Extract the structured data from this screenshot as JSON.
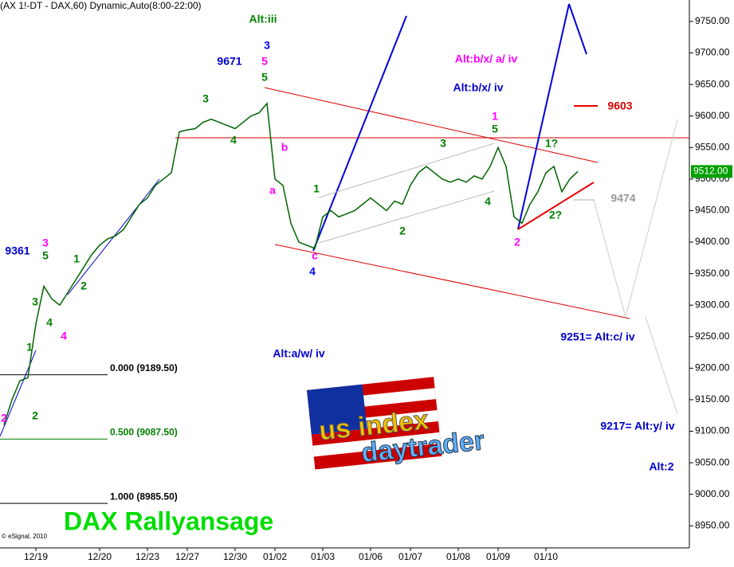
{
  "chart_data": {
    "type": "line",
    "header": "(AX 1!-DT - DAX,60) Dynamic,Auto(8:00-22:00)",
    "title": "DAX Rallyansage",
    "copyright": "© eSignal, 2010",
    "logo": [
      "us index",
      "daytrader"
    ],
    "categories": [
      null,
      null,
      null,
      null,
      "12/19",
      null,
      null,
      null,
      null,
      null,
      null,
      null,
      "12/20",
      null,
      null,
      null,
      null,
      null,
      "12/23",
      null,
      null,
      null,
      null,
      "12/27",
      null,
      null,
      null,
      null,
      null,
      "12/30",
      null,
      null,
      null,
      null,
      "01/02",
      null,
      null,
      null,
      null,
      null,
      "01/03",
      null,
      null,
      null,
      null,
      null,
      "01/06",
      null,
      null,
      null,
      null,
      "01/07",
      null,
      null,
      null,
      null,
      null,
      "01/08",
      null,
      null,
      null,
      null,
      "01/09",
      null,
      null,
      null,
      null,
      null,
      "01/10",
      null,
      null,
      null,
      null
    ],
    "series": [
      {
        "name": "DAX",
        "color": "#006400",
        "values": [
          9110,
          9150,
          9180,
          9185,
          9270,
          9330,
          9310,
          9300,
          9320,
          9340,
          9360,
          9380,
          9395,
          9405,
          9410,
          9420,
          9440,
          9460,
          9470,
          9490,
          9500,
          9510,
          9575,
          9578,
          9580,
          9590,
          9595,
          9590,
          9585,
          9580,
          9590,
          9600,
          9605,
          9620,
          9500,
          9490,
          9430,
          9400,
          9395,
          9390,
          9440,
          9450,
          9440,
          9445,
          9450,
          9460,
          9470,
          9460,
          9450,
          9465,
          9460,
          9490,
          9510,
          9520,
          9510,
          9500,
          9495,
          9500,
          9495,
          9505,
          9500,
          9520,
          9550,
          9520,
          9440,
          9430,
          9460,
          9480,
          9510,
          9520,
          9480,
          9500,
          9512
        ]
      }
    ],
    "ylim": [
      8915,
      9784
    ],
    "yticks": [
      {
        "value": 8950,
        "label": "8950.00"
      },
      {
        "value": 9000,
        "label": "9000.00"
      },
      {
        "value": 9050,
        "label": "9050.00"
      },
      {
        "value": 9100,
        "label": "9100.00"
      },
      {
        "value": 9150,
        "label": "9150.00"
      },
      {
        "value": 9200,
        "label": "9200.00"
      },
      {
        "value": 9250,
        "label": "9250.00"
      },
      {
        "value": 9300,
        "label": "9300.00"
      },
      {
        "value": 9350,
        "label": "9350.00"
      },
      {
        "value": 9400,
        "label": "9400.00"
      },
      {
        "value": 9450,
        "label": "9450.00"
      },
      {
        "value": 9500,
        "label": "9500.00"
      },
      {
        "value": 9550,
        "label": "9550.00"
      },
      {
        "value": 9600,
        "label": "9600.00"
      },
      {
        "value": 9650,
        "label": "9650.00"
      },
      {
        "value": 9700,
        "label": "9700.00"
      },
      {
        "value": 9750,
        "label": "9750.00"
      }
    ],
    "last_price": {
      "value": 9512,
      "label": "9512.00",
      "color": "#00a000"
    },
    "fib_levels": [
      {
        "value": 9189.5,
        "label": "0.000 (9189.50)",
        "color": "#000000"
      },
      {
        "value": 9087.5,
        "label": "0.500 (9087.50)",
        "color": "#008000"
      },
      {
        "value": 8985.5,
        "label": "1.000 (8985.50)",
        "color": "#000000"
      }
    ],
    "annotations": [
      {
        "text": "Alt:iii",
        "color": "#008000"
      },
      {
        "text": "3",
        "color": "#0000ff"
      },
      {
        "text": "5",
        "color": "#ff00ff"
      },
      {
        "text": "5",
        "color": "#008000"
      },
      {
        "text": "9671",
        "color": "#0000cc"
      },
      {
        "text": "3",
        "color": "#008000"
      },
      {
        "text": "4",
        "color": "#008000"
      },
      {
        "text": "b",
        "color": "#ff00ff"
      },
      {
        "text": "a",
        "color": "#ff00ff"
      },
      {
        "text": "1",
        "color": "#008000"
      },
      {
        "text": "c",
        "color": "#ff00ff"
      },
      {
        "text": "4",
        "color": "#0000ff"
      },
      {
        "text": "2",
        "color": "#008000"
      },
      {
        "text": "3",
        "color": "#008000"
      },
      {
        "text": "4",
        "color": "#008000"
      },
      {
        "text": "1",
        "color": "#ff00ff"
      },
      {
        "text": "5",
        "color": "#008000"
      },
      {
        "text": "2",
        "color": "#ff00ff"
      },
      {
        "text": "1?",
        "color": "#008000"
      },
      {
        "text": "2?",
        "color": "#008000"
      },
      {
        "text": "Alt:b/x/ a/ iv",
        "color": "#ff00ff"
      },
      {
        "text": "Alt:b/x/ iv",
        "color": "#0000cc"
      },
      {
        "text": "9603",
        "color": "#dd0000"
      },
      {
        "text": "9474",
        "color": "#999999"
      },
      {
        "text": "9251= Alt:c/ iv",
        "color": "#0000cc"
      },
      {
        "text": "Alt:a/w/ iv",
        "color": "#0000cc"
      },
      {
        "text": "9217= Alt:y/ iv",
        "color": "#0000cc"
      },
      {
        "text": "Alt:2",
        "color": "#0000cc"
      },
      {
        "text": "9361",
        "color": "#0000cc"
      },
      {
        "text": "3",
        "color": "#ff00ff"
      },
      {
        "text": "5",
        "color": "#008000"
      },
      {
        "text": "1",
        "color": "#008000"
      },
      {
        "text": "2",
        "color": "#008000"
      },
      {
        "text": "3",
        "color": "#008000"
      },
      {
        "text": "4",
        "color": "#008000"
      },
      {
        "text": "4",
        "color": "#ff00ff"
      },
      {
        "text": "1",
        "color": "#008000"
      },
      {
        "text": "2",
        "color": "#008000"
      },
      {
        "text": "2",
        "color": "#ff00ff"
      }
    ]
  }
}
